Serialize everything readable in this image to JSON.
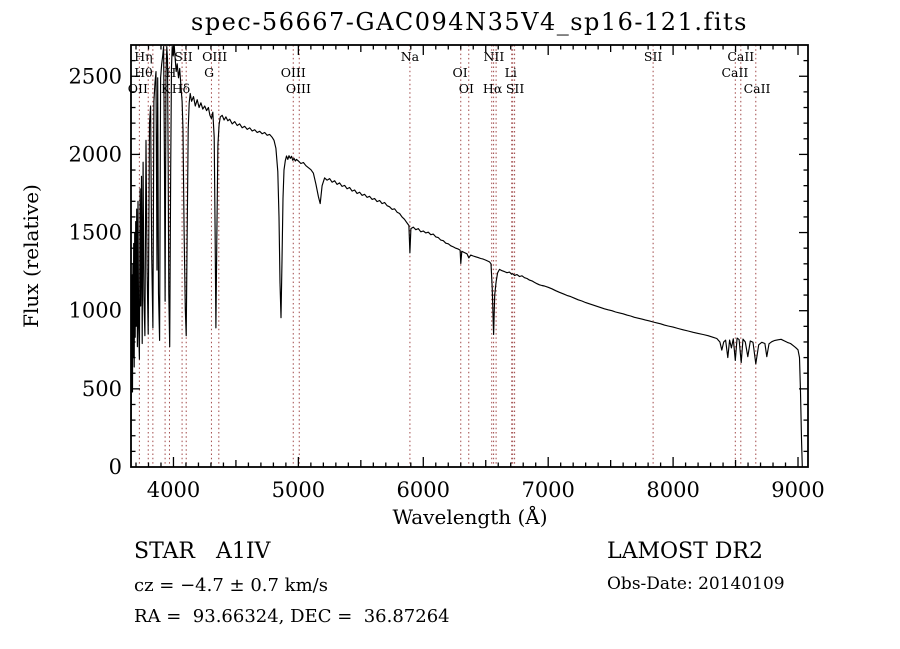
{
  "title": "spec-56667-GAC094N35V4_sp16-121.fits",
  "annotations": {
    "object_type": "STAR   A1IV",
    "cz": "cz = −4.7 ± 0.7 km/s",
    "radec": "RA =  93.66324, DEC =  36.87264",
    "survey": "LAMOST DR2",
    "obs_date": "Obs-Date: 20140109"
  },
  "chart_data": {
    "type": "line",
    "title": "spec-56667-GAC094N35V4_sp16-121.fits",
    "xlabel": "Wavelength (Å)",
    "ylabel": "Flux (relative)",
    "xlim": [
      3660,
      9080
    ],
    "ylim": [
      0,
      2700
    ],
    "x_ticks": [
      4000,
      5000,
      6000,
      7000,
      8000,
      9000
    ],
    "y_ticks": [
      0,
      500,
      1000,
      1500,
      2000,
      2500
    ],
    "grid": false,
    "line_color": "#000000",
    "marker_color": "#a04848",
    "marker_lines": [
      3727,
      3798,
      3835,
      3933,
      3968,
      4069,
      4102,
      4304,
      4363,
      4959,
      5007,
      5893,
      6300,
      6364,
      6548,
      6563,
      6583,
      6708,
      6716,
      6731,
      7840,
      8498,
      8542,
      8662
    ],
    "line_labels": [
      {
        "text": "Hη",
        "wavelength": 3760,
        "row": 1
      },
      {
        "text": "SII",
        "wavelength": 4080,
        "row": 1
      },
      {
        "text": "OIII",
        "wavelength": 4330,
        "row": 1
      },
      {
        "text": "Na",
        "wavelength": 5893,
        "row": 1
      },
      {
        "text": "NII",
        "wavelength": 6565,
        "row": 1
      },
      {
        "text": "SII",
        "wavelength": 7840,
        "row": 1
      },
      {
        "text": "CaII",
        "wavelength": 8542,
        "row": 1
      },
      {
        "text": "Hθ",
        "wavelength": 3760,
        "row": 2
      },
      {
        "text": "H",
        "wavelength": 3980,
        "row": 2
      },
      {
        "text": "G",
        "wavelength": 4285,
        "row": 2
      },
      {
        "text": "OIII",
        "wavelength": 4959,
        "row": 2
      },
      {
        "text": "OI",
        "wavelength": 6295,
        "row": 2
      },
      {
        "text": "Li",
        "wavelength": 6700,
        "row": 2
      },
      {
        "text": "CaII",
        "wavelength": 8495,
        "row": 2
      },
      {
        "text": "OII",
        "wavelength": 3715,
        "row": 3
      },
      {
        "text": "K",
        "wavelength": 3938,
        "row": 3
      },
      {
        "text": "Hδ",
        "wavelength": 4060,
        "row": 3
      },
      {
        "text": "OIII",
        "wavelength": 5000,
        "row": 3
      },
      {
        "text": "OI",
        "wavelength": 6345,
        "row": 3
      },
      {
        "text": "Hα",
        "wavelength": 6555,
        "row": 3
      },
      {
        "text": "SII",
        "wavelength": 6735,
        "row": 3
      },
      {
        "text": "CaII",
        "wavelength": 8672,
        "row": 3
      }
    ],
    "spectrum": [
      [
        3660,
        0
      ],
      [
        3661,
        1060
      ],
      [
        3662,
        300
      ],
      [
        3664,
        1150
      ],
      [
        3666,
        620
      ],
      [
        3669,
        1230
      ],
      [
        3672,
        480
      ],
      [
        3675,
        1300
      ],
      [
        3678,
        700
      ],
      [
        3682,
        1430
      ],
      [
        3686,
        640
      ],
      [
        3690,
        1500
      ],
      [
        3694,
        830
      ],
      [
        3698,
        1570
      ],
      [
        3702,
        900
      ],
      [
        3706,
        1650
      ],
      [
        3711,
        770
      ],
      [
        3716,
        1700
      ],
      [
        3721,
        900
      ],
      [
        3727,
        690
      ],
      [
        3733,
        1780
      ],
      [
        3738,
        1030
      ],
      [
        3744,
        1860
      ],
      [
        3750,
        790
      ],
      [
        3757,
        1950
      ],
      [
        3763,
        1090
      ],
      [
        3771,
        840
      ],
      [
        3780,
        2090
      ],
      [
        3789,
        1260
      ],
      [
        3798,
        850
      ],
      [
        3808,
        2200
      ],
      [
        3817,
        2310
      ],
      [
        3826,
        1360
      ],
      [
        3835,
        890
      ],
      [
        3843,
        2340
      ],
      [
        3852,
        2460
      ],
      [
        3860,
        2530
      ],
      [
        3868,
        1260
      ],
      [
        3874,
        2490
      ],
      [
        3880,
        1110
      ],
      [
        3889,
        810
      ],
      [
        3897,
        2490
      ],
      [
        3906,
        2580
      ],
      [
        3914,
        2630
      ],
      [
        3921,
        2690
      ],
      [
        3928,
        1910
      ],
      [
        3933,
        1060
      ],
      [
        3940,
        2510
      ],
      [
        3947,
        2690
      ],
      [
        3952,
        2610
      ],
      [
        3958,
        1910
      ],
      [
        3963,
        1110
      ],
      [
        3970,
        770
      ],
      [
        3978,
        1910
      ],
      [
        3984,
        2560
      ],
      [
        3990,
        2690
      ],
      [
        3998,
        2630
      ],
      [
        4006,
        2700
      ],
      [
        4014,
        2610
      ],
      [
        4022,
        2530
      ],
      [
        4030,
        2580
      ],
      [
        4040,
        2490
      ],
      [
        4050,
        2550
      ],
      [
        4060,
        2430
      ],
      [
        4069,
        2340
      ],
      [
        4076,
        2160
      ],
      [
        4085,
        1510
      ],
      [
        4095,
        1010
      ],
      [
        4102,
        840
      ],
      [
        4110,
        1510
      ],
      [
        4118,
        2160
      ],
      [
        4126,
        2330
      ],
      [
        4134,
        2390
      ],
      [
        4145,
        2340
      ],
      [
        4160,
        2370
      ],
      [
        4175,
        2310
      ],
      [
        4190,
        2350
      ],
      [
        4205,
        2300
      ],
      [
        4220,
        2330
      ],
      [
        4235,
        2290
      ],
      [
        4250,
        2310
      ],
      [
        4265,
        2280
      ],
      [
        4280,
        2300
      ],
      [
        4292,
        2250
      ],
      [
        4304,
        2230
      ],
      [
        4315,
        2270
      ],
      [
        4326,
        2110
      ],
      [
        4333,
        1510
      ],
      [
        4340,
        890
      ],
      [
        4348,
        1510
      ],
      [
        4356,
        2060
      ],
      [
        4365,
        2190
      ],
      [
        4375,
        2240
      ],
      [
        4390,
        2250
      ],
      [
        4405,
        2220
      ],
      [
        4420,
        2240
      ],
      [
        4435,
        2215
      ],
      [
        4450,
        2225
      ],
      [
        4470,
        2195
      ],
      [
        4490,
        2210
      ],
      [
        4510,
        2185
      ],
      [
        4530,
        2195
      ],
      [
        4550,
        2170
      ],
      [
        4570,
        2180
      ],
      [
        4590,
        2160
      ],
      [
        4610,
        2170
      ],
      [
        4630,
        2150
      ],
      [
        4650,
        2158
      ],
      [
        4670,
        2140
      ],
      [
        4690,
        2148
      ],
      [
        4710,
        2132
      ],
      [
        4730,
        2140
      ],
      [
        4750,
        2122
      ],
      [
        4770,
        2128
      ],
      [
        4790,
        2110
      ],
      [
        4805,
        2090
      ],
      [
        4820,
        2040
      ],
      [
        4835,
        1890
      ],
      [
        4845,
        1600
      ],
      [
        4853,
        1180
      ],
      [
        4861,
        955
      ],
      [
        4869,
        1320
      ],
      [
        4877,
        1720
      ],
      [
        4885,
        1900
      ],
      [
        4895,
        1960
      ],
      [
        4905,
        1990
      ],
      [
        4915,
        1968
      ],
      [
        4925,
        1992
      ],
      [
        4935,
        1975
      ],
      [
        4945,
        1988
      ],
      [
        4955,
        1962
      ],
      [
        4965,
        1975
      ],
      [
        4975,
        1958
      ],
      [
        4985,
        1968
      ],
      [
        5000,
        1958
      ],
      [
        5020,
        1942
      ],
      [
        5040,
        1948
      ],
      [
        5060,
        1928
      ],
      [
        5080,
        1915
      ],
      [
        5100,
        1902
      ],
      [
        5120,
        1880
      ],
      [
        5140,
        1810
      ],
      [
        5160,
        1730
      ],
      [
        5175,
        1685
      ],
      [
        5190,
        1800
      ],
      [
        5210,
        1850
      ],
      [
        5230,
        1835
      ],
      [
        5250,
        1845
      ],
      [
        5270,
        1822
      ],
      [
        5290,
        1832
      ],
      [
        5310,
        1808
      ],
      [
        5330,
        1818
      ],
      [
        5350,
        1795
      ],
      [
        5370,
        1802
      ],
      [
        5390,
        1780
      ],
      [
        5410,
        1788
      ],
      [
        5430,
        1765
      ],
      [
        5450,
        1772
      ],
      [
        5470,
        1750
      ],
      [
        5490,
        1758
      ],
      [
        5510,
        1738
      ],
      [
        5530,
        1745
      ],
      [
        5550,
        1725
      ],
      [
        5570,
        1732
      ],
      [
        5590,
        1712
      ],
      [
        5610,
        1718
      ],
      [
        5630,
        1698
      ],
      [
        5650,
        1705
      ],
      [
        5670,
        1685
      ],
      [
        5690,
        1692
      ],
      [
        5710,
        1672
      ],
      [
        5730,
        1665
      ],
      [
        5750,
        1648
      ],
      [
        5770,
        1652
      ],
      [
        5790,
        1630
      ],
      [
        5810,
        1622
      ],
      [
        5830,
        1600
      ],
      [
        5850,
        1585
      ],
      [
        5870,
        1562
      ],
      [
        5885,
        1545
      ],
      [
        5893,
        1370
      ],
      [
        5901,
        1525
      ],
      [
        5920,
        1535
      ],
      [
        5940,
        1518
      ],
      [
        5960,
        1525
      ],
      [
        5980,
        1505
      ],
      [
        6000,
        1510
      ],
      [
        6020,
        1498
      ],
      [
        6040,
        1502
      ],
      [
        6060,
        1486
      ],
      [
        6080,
        1490
      ],
      [
        6100,
        1472
      ],
      [
        6120,
        1468
      ],
      [
        6140,
        1452
      ],
      [
        6160,
        1448
      ],
      [
        6180,
        1432
      ],
      [
        6200,
        1428
      ],
      [
        6220,
        1415
      ],
      [
        6240,
        1408
      ],
      [
        6260,
        1400
      ],
      [
        6280,
        1394
      ],
      [
        6295,
        1388
      ],
      [
        6300,
        1302
      ],
      [
        6308,
        1380
      ],
      [
        6330,
        1372
      ],
      [
        6350,
        1364
      ],
      [
        6364,
        1338
      ],
      [
        6380,
        1356
      ],
      [
        6400,
        1350
      ],
      [
        6420,
        1345
      ],
      [
        6440,
        1340
      ],
      [
        6460,
        1334
      ],
      [
        6480,
        1330
      ],
      [
        6500,
        1324
      ],
      [
        6515,
        1318
      ],
      [
        6530,
        1312
      ],
      [
        6542,
        1300
      ],
      [
        6552,
        1150
      ],
      [
        6563,
        848
      ],
      [
        6572,
        1100
      ],
      [
        6583,
        1185
      ],
      [
        6595,
        1242
      ],
      [
        6610,
        1264
      ],
      [
        6630,
        1256
      ],
      [
        6650,
        1250
      ],
      [
        6670,
        1243
      ],
      [
        6690,
        1247
      ],
      [
        6708,
        1233
      ],
      [
        6716,
        1237
      ],
      [
        6731,
        1226
      ],
      [
        6750,
        1231
      ],
      [
        6770,
        1219
      ],
      [
        6790,
        1223
      ],
      [
        6810,
        1211
      ],
      [
        6830,
        1206
      ],
      [
        6850,
        1196
      ],
      [
        6870,
        1191
      ],
      [
        6890,
        1181
      ],
      [
        6910,
        1173
      ],
      [
        6930,
        1166
      ],
      [
        6950,
        1161
      ],
      [
        6970,
        1158
      ],
      [
        7000,
        1150
      ],
      [
        7030,
        1140
      ],
      [
        7060,
        1128
      ],
      [
        7090,
        1118
      ],
      [
        7120,
        1108
      ],
      [
        7150,
        1098
      ],
      [
        7180,
        1090
      ],
      [
        7210,
        1080
      ],
      [
        7240,
        1070
      ],
      [
        7270,
        1062
      ],
      [
        7300,
        1052
      ],
      [
        7330,
        1044
      ],
      [
        7360,
        1036
      ],
      [
        7390,
        1028
      ],
      [
        7420,
        1020
      ],
      [
        7450,
        1012
      ],
      [
        7480,
        1006
      ],
      [
        7510,
        1000
      ],
      [
        7540,
        992
      ],
      [
        7570,
        986
      ],
      [
        7600,
        980
      ],
      [
        7630,
        972
      ],
      [
        7660,
        966
      ],
      [
        7690,
        958
      ],
      [
        7720,
        952
      ],
      [
        7750,
        946
      ],
      [
        7780,
        940
      ],
      [
        7810,
        935
      ],
      [
        7840,
        928
      ],
      [
        7870,
        922
      ],
      [
        7900,
        916
      ],
      [
        7930,
        908
      ],
      [
        7960,
        902
      ],
      [
        8000,
        895
      ],
      [
        8040,
        886
      ],
      [
        8080,
        878
      ],
      [
        8120,
        870
      ],
      [
        8160,
        862
      ],
      [
        8200,
        855
      ],
      [
        8240,
        848
      ],
      [
        8280,
        840
      ],
      [
        8320,
        830
      ],
      [
        8350,
        822
      ],
      [
        8375,
        800
      ],
      [
        8390,
        748
      ],
      [
        8405,
        800
      ],
      [
        8420,
        812
      ],
      [
        8438,
        700
      ],
      [
        8452,
        812
      ],
      [
        8467,
        762
      ],
      [
        8482,
        820
      ],
      [
        8498,
        682
      ],
      [
        8512,
        825
      ],
      [
        8528,
        815
      ],
      [
        8545,
        668
      ],
      [
        8560,
        818
      ],
      [
        8578,
        800
      ],
      [
        8598,
        706
      ],
      [
        8618,
        806
      ],
      [
        8640,
        798
      ],
      [
        8662,
        660
      ],
      [
        8685,
        782
      ],
      [
        8710,
        798
      ],
      [
        8735,
        790
      ],
      [
        8750,
        706
      ],
      [
        8768,
        788
      ],
      [
        8790,
        802
      ],
      [
        8815,
        810
      ],
      [
        8840,
        814
      ],
      [
        8865,
        817
      ],
      [
        8890,
        807
      ],
      [
        8915,
        797
      ],
      [
        8940,
        790
      ],
      [
        8960,
        778
      ],
      [
        8980,
        765
      ],
      [
        9000,
        750
      ],
      [
        9012,
        700
      ],
      [
        9020,
        480
      ],
      [
        9028,
        180
      ],
      [
        9034,
        0
      ]
    ]
  }
}
